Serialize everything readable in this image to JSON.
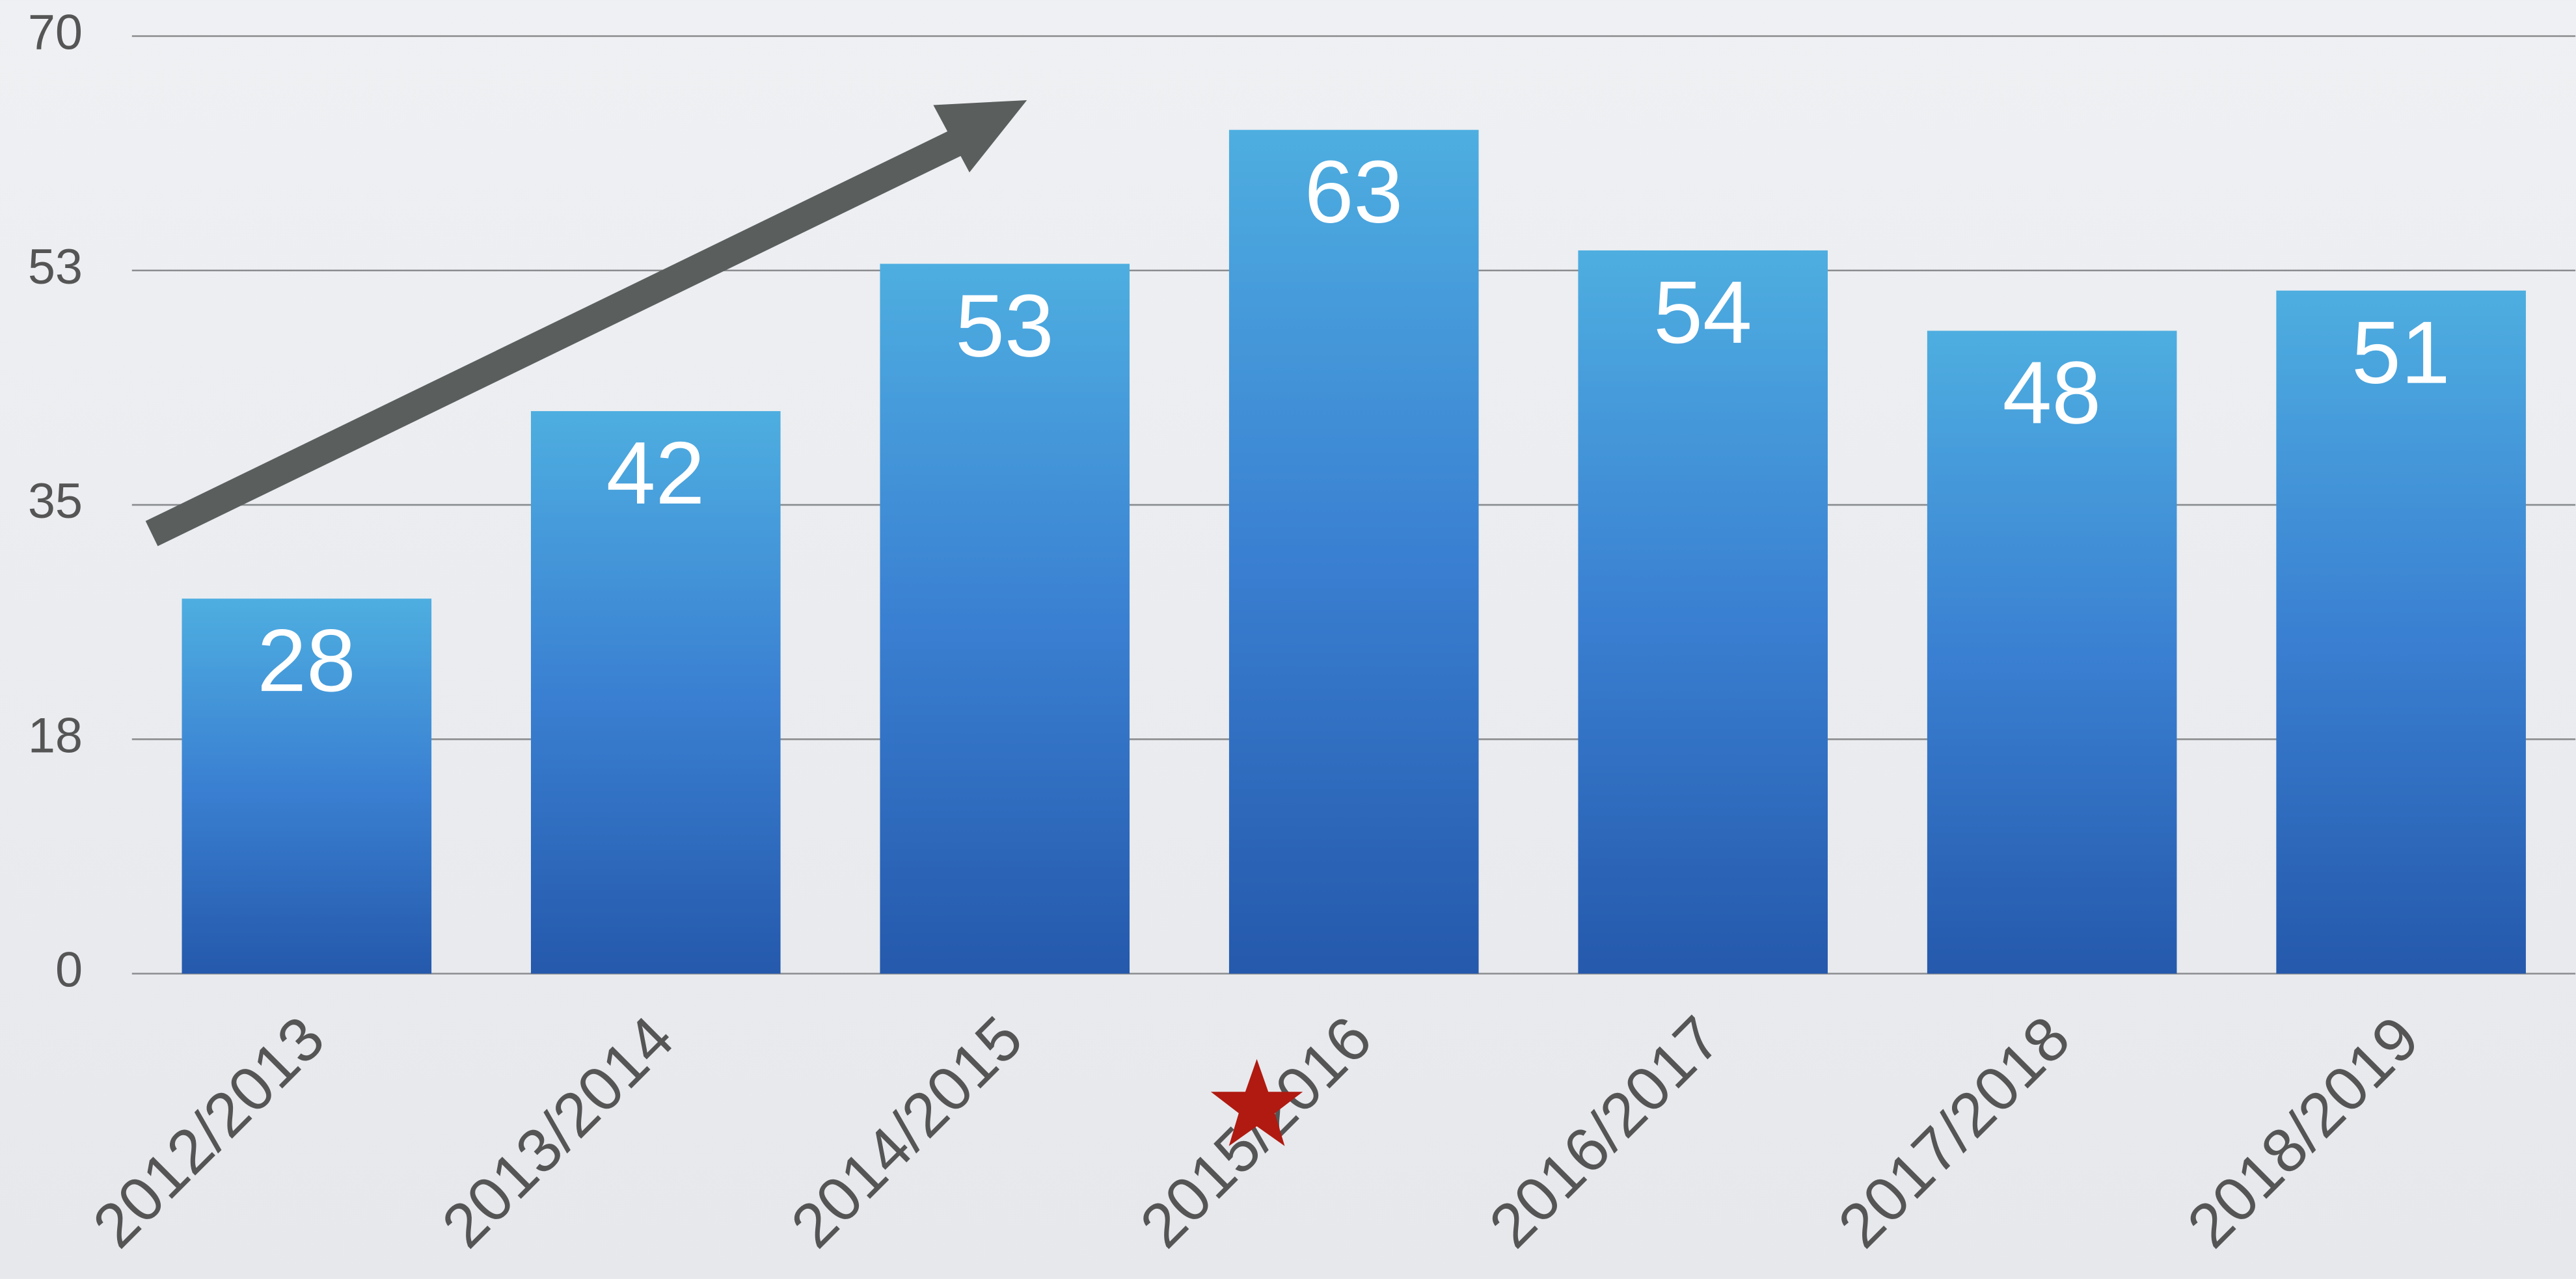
{
  "chart_data": {
    "type": "bar",
    "categories": [
      "2012/2013",
      "2013/2014",
      "2014/2015",
      "2015/2016",
      "2016/2017",
      "2017/2018",
      "2018/2019"
    ],
    "values": [
      28,
      42,
      53,
      63,
      54,
      48,
      51
    ],
    "color": "#3a7fd0",
    "ylim": [
      0,
      70
    ],
    "yticks": [
      0,
      {
        "value": 17.5,
        "label": "18"
      },
      35,
      {
        "value": 52.5,
        "label": "53"
      },
      70
    ],
    "grid": true
  }
}
